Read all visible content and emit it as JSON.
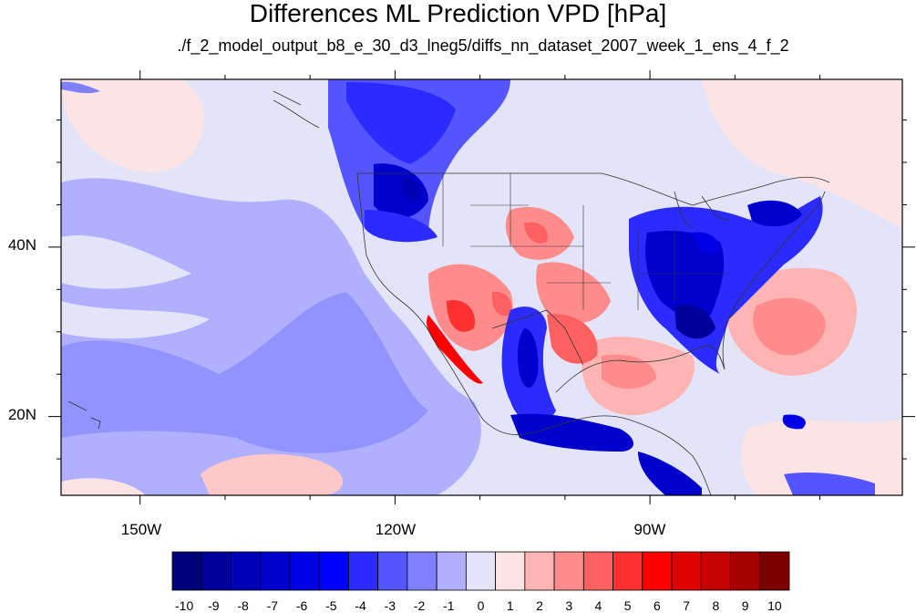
{
  "title": "Differences ML Prediction VPD [hPa]",
  "subtitle": "./f_2_model_output_b8_e_30_d3_lneg5/diffs_nn_dataset_2007_week_1_ens_4_f_2",
  "map": {
    "lon_labels": [
      "150W",
      "120W",
      "90W"
    ],
    "lat_labels": [
      "40N",
      "20N"
    ],
    "lon_values": [
      -150,
      -120,
      -90
    ],
    "lat_values": [
      40,
      20
    ],
    "lon_range": [
      -159.3,
      -60.3
    ],
    "lat_range": [
      10.7,
      59.8
    ]
  },
  "colorbar": {
    "labels": [
      "-10",
      "-9",
      "-8",
      "-7",
      "-6",
      "-5",
      "-4",
      "-3",
      "-2",
      "-1",
      "0",
      "1",
      "2",
      "3",
      "4",
      "5",
      "6",
      "7",
      "8",
      "9",
      "10"
    ],
    "colors": [
      "#00007a",
      "#00009a",
      "#0000b4",
      "#0000cc",
      "#0000e6",
      "#0000ff",
      "#2b2bff",
      "#5555ff",
      "#8080ff",
      "#b0b0ff",
      "#e4e4f8",
      "#fde4e4",
      "#ffb4b4",
      "#ff8c8c",
      "#ff6060",
      "#ff3030",
      "#ff0000",
      "#e00000",
      "#c40000",
      "#a40000",
      "#7c0000"
    ]
  }
}
